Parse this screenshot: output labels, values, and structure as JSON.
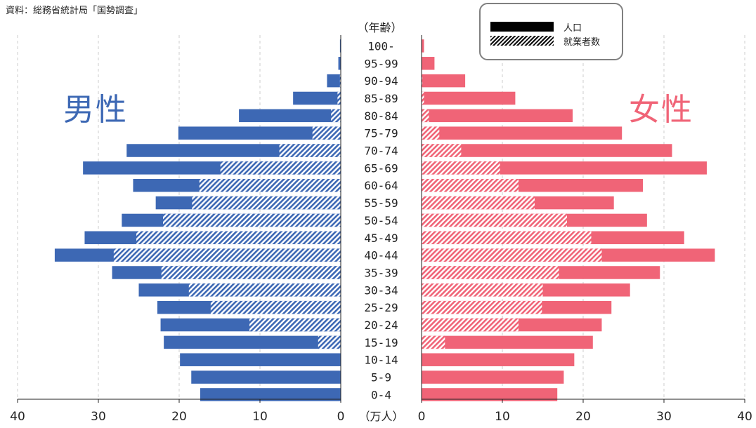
{
  "source_note": "資料：総務省統計局「国勢調査」",
  "labels": {
    "male": "男性",
    "female": "女性",
    "age_header": "（年齢）",
    "unit": "（万人）"
  },
  "legend": {
    "population": "人口",
    "employed": "就業者数"
  },
  "colors": {
    "male": "#3d68b4",
    "female": "#f06477",
    "grid": "#cccccc"
  },
  "chart_data": {
    "type": "bar",
    "orientation": "horizontal-population-pyramid",
    "categories": [
      "100-",
      "95-99",
      "90-94",
      "85-89",
      "80-84",
      "75-79",
      "70-74",
      "65-69",
      "60-64",
      "55-59",
      "50-54",
      "45-49",
      "40-44",
      "35-39",
      "30-34",
      "25-29",
      "20-24",
      "15-19",
      "10-14",
      "5-9",
      "0-4"
    ],
    "series": [
      {
        "name": "人口",
        "group": "男性",
        "values": [
          0.1,
          0.3,
          1.7,
          5.9,
          12.6,
          20.1,
          26.5,
          31.9,
          25.7,
          22.9,
          27.1,
          31.7,
          35.4,
          28.3,
          25.0,
          22.7,
          22.3,
          21.9,
          19.9,
          18.5,
          17.4
        ]
      },
      {
        "name": "就業者数",
        "group": "男性",
        "values": [
          0.0,
          0.0,
          0.1,
          0.4,
          1.2,
          3.5,
          7.6,
          14.9,
          17.5,
          18.4,
          22.0,
          25.3,
          28.1,
          22.2,
          18.8,
          16.1,
          11.3,
          2.8,
          0.0,
          0.0,
          0.0
        ]
      },
      {
        "name": "人口",
        "group": "女性",
        "values": [
          0.3,
          1.6,
          5.4,
          11.6,
          18.7,
          24.8,
          31.0,
          35.3,
          27.4,
          23.8,
          27.9,
          32.5,
          36.3,
          29.5,
          25.8,
          23.5,
          22.3,
          21.2,
          18.9,
          17.6,
          16.8
        ]
      },
      {
        "name": "就業者数",
        "group": "女性",
        "values": [
          0.0,
          0.0,
          0.1,
          0.3,
          0.9,
          2.2,
          4.9,
          9.7,
          12.0,
          14.0,
          18.0,
          21.0,
          22.3,
          17.0,
          15.0,
          14.9,
          12.0,
          2.9,
          0.0,
          0.0,
          0.0
        ]
      }
    ],
    "xlabel": "（万人）",
    "ylabel": "（年齢）",
    "xlim": [
      0,
      40
    ],
    "x_ticks": [
      0,
      10,
      20,
      30,
      40
    ],
    "grid": "vertical dashed"
  }
}
